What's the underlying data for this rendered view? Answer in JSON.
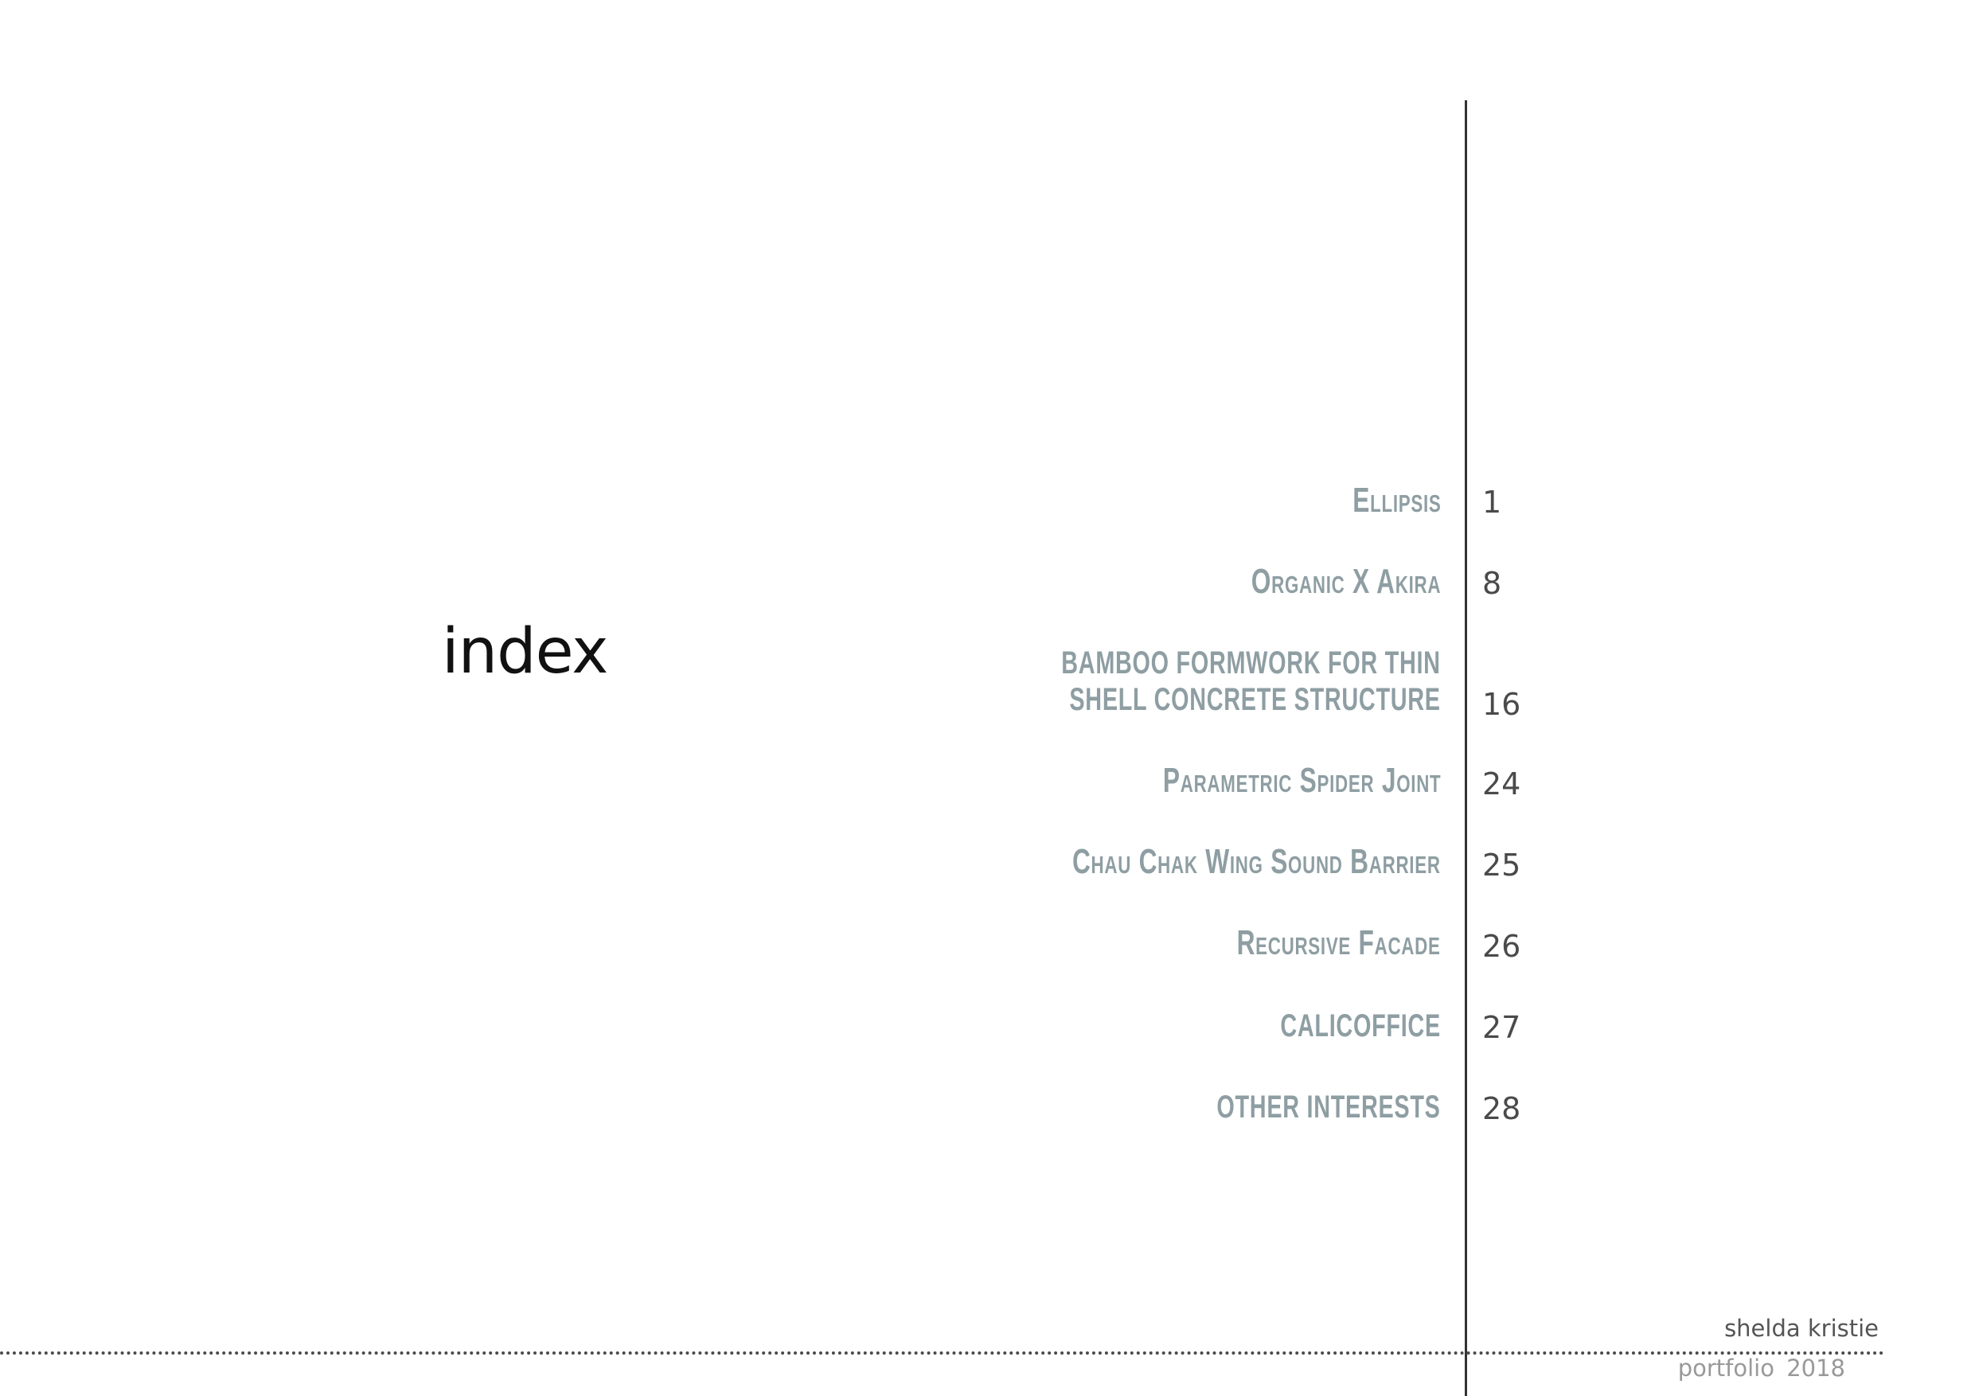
{
  "page_title": "index",
  "contents": [
    {
      "title": "Ellipsis",
      "page": "1"
    },
    {
      "title": "Organic X Akira",
      "page": "8"
    },
    {
      "title_lines": [
        "BAMBOO FORMWORK FOR THIN",
        "SHELL CONCRETE STRUCTURE"
      ],
      "page": "16"
    },
    {
      "title": "Parametric Spider Joint",
      "page": "24"
    },
    {
      "title": "Chau Chak Wing Sound Barrier",
      "page": "25"
    },
    {
      "title": "Recursive Facade",
      "page": "26"
    },
    {
      "title": "CALICOFFICE",
      "page": "27"
    },
    {
      "title": "OTHER INTERESTS",
      "page": "28"
    }
  ],
  "footer": {
    "author": "shelda kristie",
    "edition": "portfolio 2018"
  }
}
